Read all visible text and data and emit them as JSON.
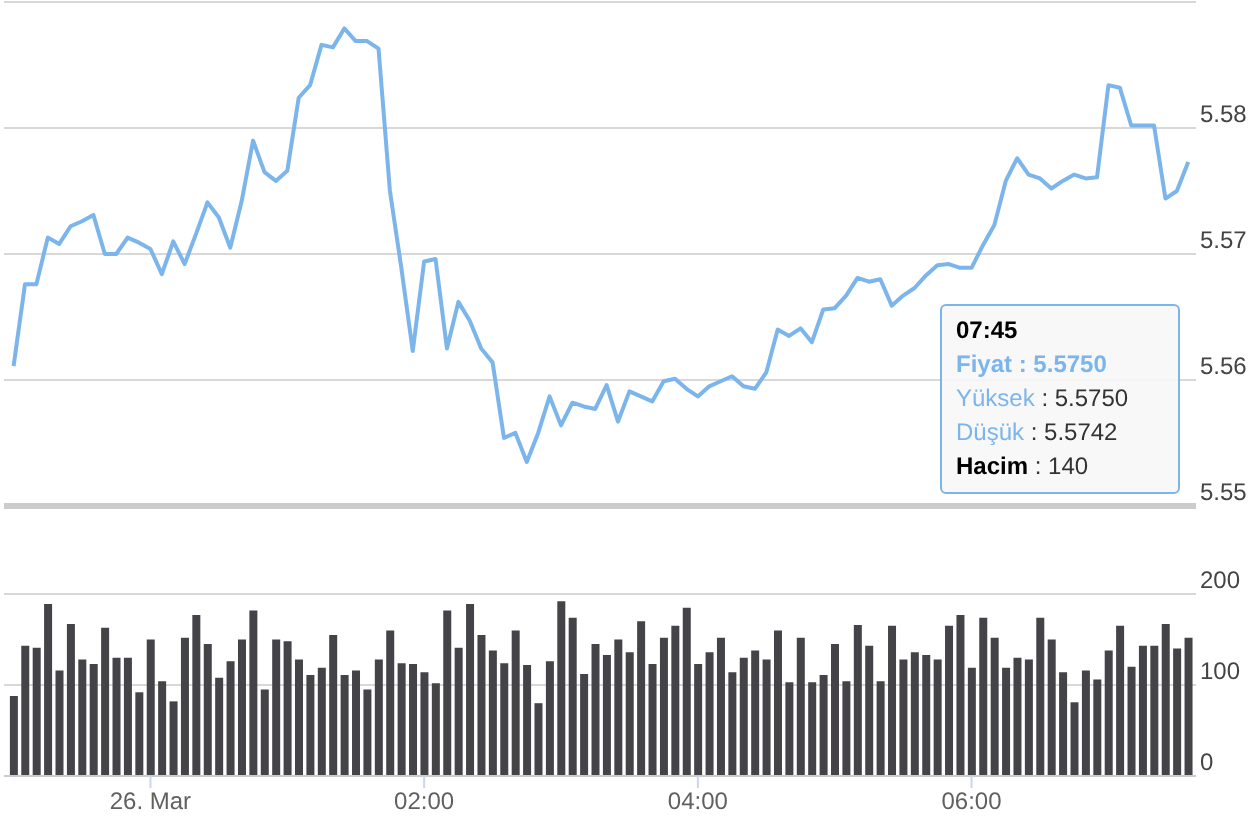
{
  "chart_data": [
    {
      "type": "line",
      "tick_labels": "y",
      "grid": "y",
      "xlim": [
        -1.07,
        7.64
      ],
      "ylim": [
        5.55,
        5.59
      ],
      "yticks": [
        5.55,
        5.56,
        5.57,
        5.58
      ],
      "annotations": [
        "07:45",
        "Fiyat : 5.5750",
        "Yüksek : 5.5750",
        "Düşük : 5.5742",
        "Hacim : 140"
      ],
      "x": [
        -1,
        -0.9167,
        -0.8333,
        -0.75,
        -0.6667,
        -0.5833,
        -0.5,
        -0.4167,
        -0.3333,
        -0.25,
        -0.1667,
        -0.0833,
        0,
        0.0833,
        0.1667,
        0.25,
        0.3333,
        0.4167,
        0.5,
        0.5833,
        0.6667,
        0.75,
        0.8333,
        0.9167,
        1,
        1.0833,
        1.1667,
        1.25,
        1.3333,
        1.4167,
        1.5,
        1.5833,
        1.6667,
        1.75,
        1.8333,
        1.9167,
        2,
        2.0833,
        2.1667,
        2.25,
        2.3333,
        2.4167,
        2.5,
        2.5833,
        2.6667,
        2.75,
        2.8333,
        2.9167,
        3,
        3.0833,
        3.1667,
        3.25,
        3.3333,
        3.4167,
        3.5,
        3.5833,
        3.6667,
        3.75,
        3.8333,
        3.9167,
        4,
        4.0833,
        4.1667,
        4.25,
        4.3333,
        4.4167,
        4.5,
        4.5833,
        4.6667,
        4.75,
        4.8333,
        4.9167,
        5,
        5.0833,
        5.1667,
        5.25,
        5.3333,
        5.4167,
        5.5,
        5.5833,
        5.6667,
        5.75,
        5.8333,
        5.9167,
        6,
        6.0833,
        6.1667,
        6.25,
        6.3333,
        6.4167,
        6.5,
        6.5833,
        6.6667,
        6.75,
        6.8333,
        6.9167,
        7,
        7.0833,
        7.1667,
        7.25,
        7.3333,
        7.4167,
        7.5,
        7.5833
      ],
      "series": [
        {
          "color": "#7cb5ec",
          "values": [
            5.5611,
            5.5676,
            5.5676,
            5.5713,
            5.5708,
            5.5722,
            5.5726,
            5.5731,
            5.57,
            5.57,
            5.5713,
            5.5709,
            5.5704,
            5.5684,
            5.571,
            5.5692,
            5.5716,
            5.5741,
            5.5729,
            5.5705,
            5.5742,
            5.579,
            5.5765,
            5.5758,
            5.5766,
            5.5824,
            5.5834,
            5.5866,
            5.5864,
            5.5879,
            5.5869,
            5.5869,
            5.5863,
            5.575,
            5.5689,
            5.5623,
            5.5694,
            5.5696,
            5.5625,
            5.5662,
            5.5647,
            5.5625,
            5.5614,
            5.5554,
            5.5558,
            5.5535,
            5.5558,
            5.5587,
            5.5564,
            5.5582,
            5.5579,
            5.5577,
            5.5596,
            5.5567,
            5.5591,
            5.5587,
            5.5583,
            5.5599,
            5.5601,
            5.5593,
            5.5587,
            5.5595,
            5.5599,
            5.5603,
            5.5595,
            5.5593,
            5.5606,
            5.564,
            5.5635,
            5.5641,
            5.563,
            5.5656,
            5.5657,
            5.5667,
            5.5681,
            5.5678,
            5.568,
            5.5659,
            5.5667,
            5.5673,
            5.5683,
            5.5691,
            5.5692,
            5.5689,
            5.5689,
            5.5707,
            5.5723,
            5.5758,
            5.5776,
            5.5763,
            5.576,
            5.5752,
            5.5758,
            5.5763,
            5.576,
            5.5761,
            5.5834,
            5.5832,
            5.5802,
            5.5802,
            5.5802,
            5.5744,
            5.575,
            5.5773
          ]
        }
      ]
    },
    {
      "type": "bar",
      "grid": "y",
      "xlim": [
        -1.07,
        7.64
      ],
      "ylim": [
        0,
        200
      ],
      "yticks": [
        0,
        100,
        200
      ],
      "xticks": [
        {
          "value": 0,
          "label": "26. Mar"
        },
        {
          "value": 2,
          "label": "02:00"
        },
        {
          "value": 4,
          "label": "04:00"
        },
        {
          "value": 6,
          "label": "06:00"
        }
      ],
      "x": [
        -1,
        -0.9167,
        -0.8333,
        -0.75,
        -0.6667,
        -0.5833,
        -0.5,
        -0.4167,
        -0.3333,
        -0.25,
        -0.1667,
        -0.0833,
        0,
        0.0833,
        0.1667,
        0.25,
        0.3333,
        0.4167,
        0.5,
        0.5833,
        0.6667,
        0.75,
        0.8333,
        0.9167,
        1,
        1.0833,
        1.1667,
        1.25,
        1.3333,
        1.4167,
        1.5,
        1.5833,
        1.6667,
        1.75,
        1.8333,
        1.9167,
        2,
        2.0833,
        2.1667,
        2.25,
        2.3333,
        2.4167,
        2.5,
        2.5833,
        2.6667,
        2.75,
        2.8333,
        2.9167,
        3,
        3.0833,
        3.1667,
        3.25,
        3.3333,
        3.4167,
        3.5,
        3.5833,
        3.6667,
        3.75,
        3.8333,
        3.9167,
        4,
        4.0833,
        4.1667,
        4.25,
        4.3333,
        4.4167,
        4.5,
        4.5833,
        4.6667,
        4.75,
        4.8333,
        4.9167,
        5,
        5.0833,
        5.1667,
        5.25,
        5.3333,
        5.4167,
        5.5,
        5.5833,
        5.6667,
        5.75,
        5.8333,
        5.9167,
        6,
        6.0833,
        6.1667,
        6.25,
        6.3333,
        6.4167,
        6.5,
        6.5833,
        6.6667,
        6.75,
        6.8333,
        6.9167,
        7,
        7.0833,
        7.1667,
        7.25,
        7.3333,
        7.4167,
        7.5,
        7.5833
      ],
      "series": [
        {
          "color": "#434348",
          "values": [
            88,
            143,
            141,
            189,
            116,
            167,
            128,
            123,
            163,
            130,
            130,
            92,
            150,
            104,
            82,
            152,
            177,
            145,
            108,
            126,
            150,
            182,
            95,
            150,
            148,
            128,
            111,
            119,
            155,
            111,
            116,
            95,
            128,
            160,
            124,
            123,
            114,
            102,
            182,
            141,
            189,
            155,
            138,
            124,
            160,
            122,
            80,
            126,
            192,
            174,
            112,
            145,
            133,
            150,
            136,
            170,
            123,
            152,
            165,
            185,
            123,
            136,
            152,
            114,
            130,
            138,
            128,
            160,
            103,
            152,
            103,
            111,
            145,
            104,
            166,
            143,
            104,
            165,
            128,
            136,
            133,
            128,
            165,
            177,
            119,
            174,
            152,
            119,
            130,
            128,
            174,
            150,
            114,
            81,
            116,
            106,
            138,
            165,
            120,
            143,
            143,
            167,
            140,
            152
          ]
        }
      ]
    }
  ]
}
